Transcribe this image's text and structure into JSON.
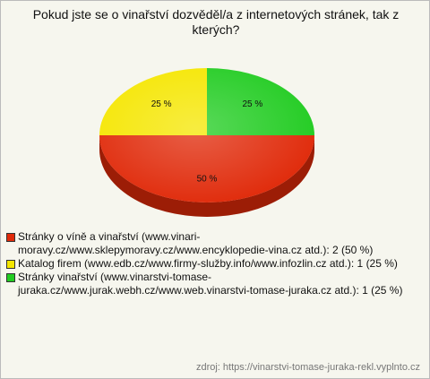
{
  "chart_data": {
    "type": "pie",
    "title": "Pokud jste se o vinařství dozvěděl/a z internetových stránek, tak z kterých?",
    "categories": [
      "Stránky o víně a vinařství (www.vinari-moravy.cz/www.sklepymoravy.cz/www.encyklopedie-vina.cz atd.): 2 (50 %)",
      "Katalog firem (www.edb.cz/www.firmy-služby.info/www.infozlin.cz atd.): 1 (25 %)",
      "Stránky vinařství (www.vinarstvi-tomase-juraka.cz/www.jurak.webh.cz/www.web.vinarstvi-tomase-juraka.cz atd.): 1 (25 %)"
    ],
    "values": [
      50,
      25,
      25
    ],
    "value_labels": [
      "50 %",
      "25 %",
      "25 %"
    ],
    "colors": [
      "#e02a0a",
      "#f5e600",
      "#22cc22"
    ],
    "source": "zdroj: https://vinarstvi-tomase-juraka-rekl.vyplnto.cz"
  }
}
